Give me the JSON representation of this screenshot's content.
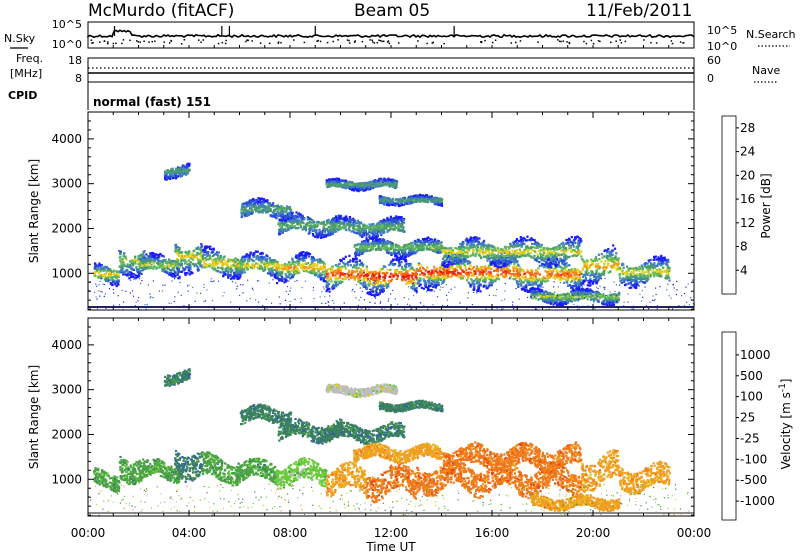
{
  "header": {
    "station": "McMurdo (fitACF)",
    "beam": "Beam 05",
    "date": "11/Feb/2011"
  },
  "noise_panel": {
    "left_label": "N.Sky",
    "right_label": "N.Search",
    "left_ticks": [
      "10^5",
      "10^0"
    ],
    "right_ticks": [
      "10^5",
      "10^0"
    ]
  },
  "freq_panel": {
    "left_label_1": "Freq.",
    "left_label_2": "[MHz]",
    "right_label": "Nave",
    "left_ticks": [
      "18",
      "8"
    ],
    "right_ticks": [
      "60",
      "0"
    ],
    "cpid_label": "CPID",
    "mode": "normal (fast) 151"
  },
  "colors": {
    "power": [
      "#1a1aff",
      "#2b4fd1",
      "#3f7fc0",
      "#4a9a6c",
      "#5fb85a",
      "#e6d21e",
      "#f59a12",
      "#f56a10",
      "#e82a10",
      "#dd0000"
    ],
    "velocity": [
      "#2c3ba8",
      "#2f5db0",
      "#3b7f62",
      "#4aa542",
      "#6acb3a",
      "#bdbdbd",
      "#e8c81a",
      "#f0a020",
      "#f07818",
      "#e84810",
      "#e81010"
    ]
  },
  "chart_data": [
    {
      "type": "heatmap",
      "title": "",
      "xlabel": "Time UT",
      "ylabel": "Slant Range [km]",
      "x_ticks": [
        "00:00",
        "04:00",
        "08:00",
        "12:00",
        "16:00",
        "20:00",
        "00:00"
      ],
      "y_ticks": [
        "1000",
        "2000",
        "3000",
        "4000"
      ],
      "xlim_hours": [
        0,
        24
      ],
      "ylim_km": [
        180,
        4600
      ],
      "colorbar": {
        "label": "Power [dB]",
        "ticks": [
          "4",
          "8",
          "12",
          "16",
          "20",
          "24",
          "28"
        ],
        "range": [
          0,
          30
        ]
      }
    },
    {
      "type": "heatmap",
      "title": "",
      "xlabel": "Time UT",
      "ylabel": "Slant Range [km]",
      "x_ticks": [
        "00:00",
        "04:00",
        "08:00",
        "12:00",
        "16:00",
        "20:00",
        "00:00"
      ],
      "y_ticks": [
        "1000",
        "2000",
        "3000",
        "4000"
      ],
      "xlim_hours": [
        0,
        24
      ],
      "ylim_km": [
        180,
        4600
      ],
      "colorbar": {
        "label": "Velocity [m s^-1]",
        "ticks": [
          "1000",
          "500",
          "100",
          "25",
          "-25",
          "-100",
          "-500",
          "-1000"
        ]
      }
    }
  ]
}
